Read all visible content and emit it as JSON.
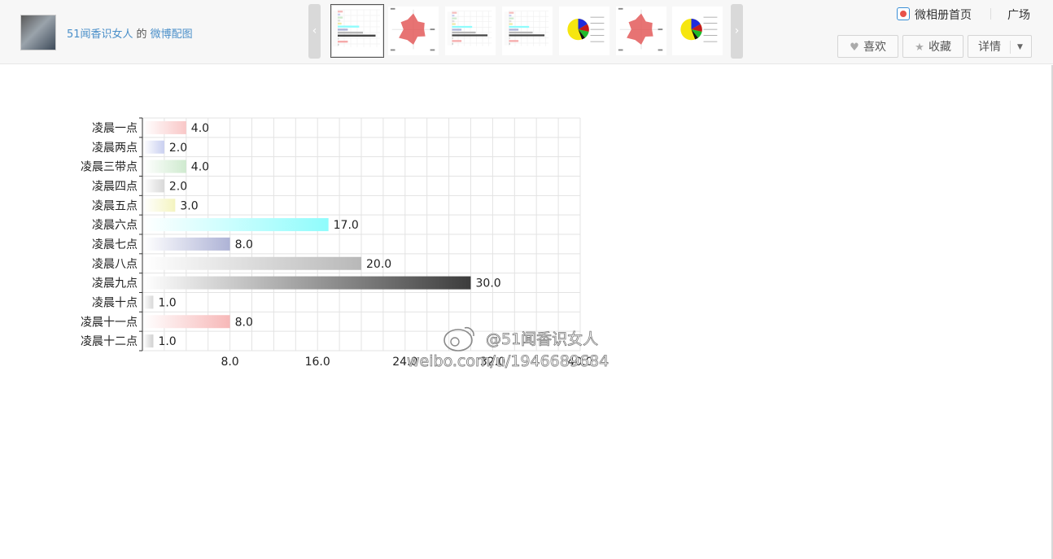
{
  "header": {
    "user_name": "51闻香识女人",
    "connector": "的",
    "album_name": "微博配图",
    "album_home_label": "微相册首页",
    "square_label": "广场",
    "like_label": "喜欢",
    "favorite_label": "收藏",
    "details_label": "详情"
  },
  "carousel": {
    "prev_arrow": "‹",
    "next_arrow": "›",
    "thumbnails": [
      {
        "kind": "bar-chart",
        "active": true
      },
      {
        "kind": "radar-chart",
        "active": false
      },
      {
        "kind": "bar-chart",
        "active": false
      },
      {
        "kind": "bar-chart",
        "active": false
      },
      {
        "kind": "pie-chart",
        "active": false
      },
      {
        "kind": "radar-chart",
        "active": false
      },
      {
        "kind": "pie-chart",
        "active": false
      }
    ]
  },
  "watermark": {
    "handle": "@51闻香识女人",
    "url": "weibo.com/u/1946689684"
  },
  "chart_data": {
    "type": "bar",
    "orientation": "horizontal",
    "title": "",
    "xlabel": "",
    "ylabel": "",
    "categories": [
      "凌晨一点",
      "凌晨两点",
      "凌晨三带点",
      "凌晨四点",
      "凌晨五点",
      "凌晨六点",
      "凌晨七点",
      "凌晨八点",
      "凌晨九点",
      "凌晨十点",
      "凌晨十一点",
      "凌晨十二点"
    ],
    "values": [
      4.0,
      2.0,
      4.0,
      2.0,
      3.0,
      17.0,
      8.0,
      20.0,
      30.0,
      1.0,
      8.0,
      1.0
    ],
    "value_labels": [
      "4.0",
      "2.0",
      "4.0",
      "2.0",
      "3.0",
      "17.0",
      "8.0",
      "20.0",
      "30.0",
      "1.0",
      "8.0",
      "1.0"
    ],
    "bar_colors": [
      "#f9c7c7",
      "#c9cff0",
      "#cfeacf",
      "#d8d8d8",
      "#f4f4c0",
      "#8ffcfc",
      "#aeb3d6",
      "#b8b8b8",
      "#3c3c3c",
      "#d8d8d8",
      "#f7b8b8",
      "#d0d0d0"
    ],
    "xlim": [
      0,
      40
    ],
    "xticks": [
      8,
      16,
      24,
      32,
      40
    ],
    "xtick_labels": [
      "8.0",
      "16.0",
      "24.0",
      "32.0",
      "40.0"
    ],
    "grid": true,
    "legend": "none"
  }
}
